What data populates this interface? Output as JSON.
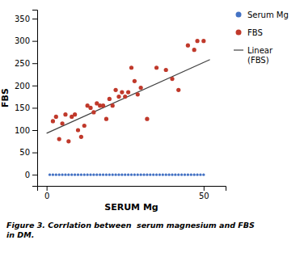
{
  "chart_data": {
    "type": "scatter",
    "xlabel": "SERUM Mg",
    "ylabel": "FBS",
    "caption": "Figure 3. Corrlation between  serum magnesium and FBS\nin DM.",
    "xlim": [
      -3,
      57
    ],
    "ylim": [
      -25,
      370
    ],
    "xticks": [
      0,
      50
    ],
    "yticks": [
      0,
      50,
      100,
      150,
      200,
      250,
      300,
      350
    ],
    "grid": false,
    "legend": "right",
    "series": [
      {
        "name": "Serum Mg",
        "type": "scatter",
        "color": "#4472c4",
        "x": [
          1,
          2,
          3,
          4,
          5,
          6,
          7,
          8,
          9,
          10,
          11,
          12,
          13,
          14,
          15,
          16,
          17,
          18,
          19,
          20,
          21,
          22,
          23,
          24,
          25,
          26,
          27,
          28,
          29,
          30,
          31,
          32,
          33,
          34,
          35,
          36,
          37,
          38,
          39,
          40,
          41,
          42,
          43,
          44,
          45,
          46,
          47,
          48,
          49,
          50
        ],
        "values": [
          0,
          0,
          0,
          0,
          0,
          0,
          0,
          0,
          0,
          0,
          0,
          0,
          0,
          0,
          0,
          0,
          0,
          0,
          0,
          0,
          0,
          0,
          0,
          0,
          0,
          0,
          0,
          0,
          0,
          0,
          0,
          0,
          0,
          0,
          0,
          0,
          0,
          0,
          0,
          0,
          0,
          0,
          0,
          0,
          0,
          0,
          0,
          0,
          0,
          0
        ]
      },
      {
        "name": "FBS",
        "type": "scatter",
        "color": "#c0392b",
        "x": [
          2,
          3,
          4,
          5,
          6,
          7,
          8,
          9,
          10,
          11,
          12,
          13,
          14,
          15,
          16,
          17,
          18,
          19,
          20,
          21,
          22,
          23,
          24,
          25,
          26,
          27,
          28,
          29,
          30,
          32,
          35,
          38,
          40,
          42,
          45,
          47,
          48,
          50
        ],
        "values": [
          120,
          130,
          80,
          115,
          135,
          75,
          130,
          135,
          100,
          85,
          110,
          155,
          150,
          140,
          160,
          155,
          155,
          125,
          170,
          155,
          190,
          175,
          185,
          175,
          185,
          240,
          210,
          180,
          195,
          125,
          240,
          235,
          215,
          190,
          290,
          280,
          300,
          300
        ]
      },
      {
        "name": "Linear\n(FBS)",
        "type": "line",
        "color": "#404040",
        "x": [
          0,
          52
        ],
        "values": [
          93,
          258
        ]
      }
    ]
  }
}
